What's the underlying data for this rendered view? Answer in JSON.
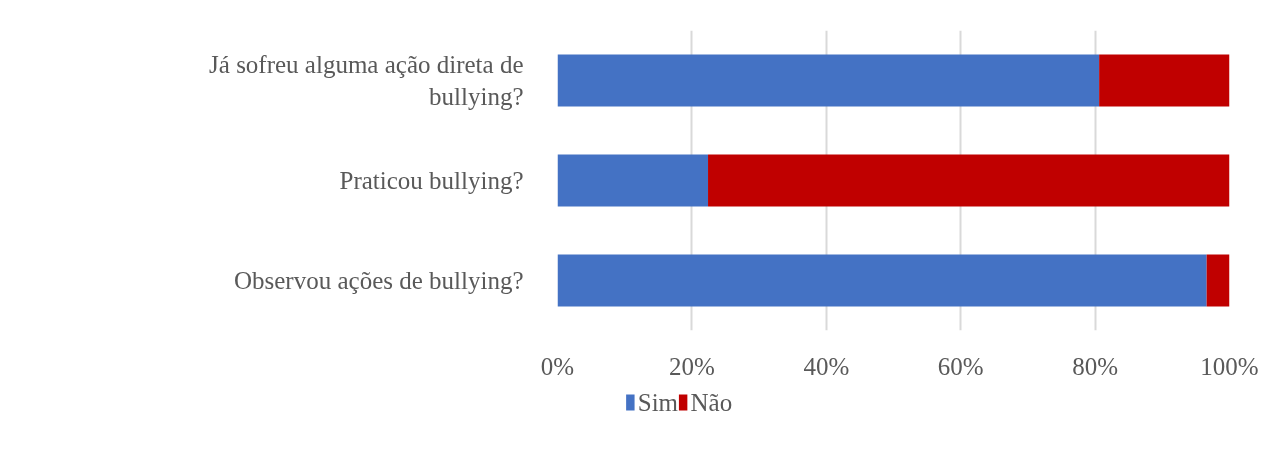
{
  "chart_data": {
    "type": "bar",
    "orientation": "horizontal",
    "stacked": true,
    "categories": [
      "Já sofreu alguma ação direta de bullying?",
      "Praticou bullying?",
      "Observou ações de bullying?"
    ],
    "series": [
      {
        "name": "Sim",
        "color": "#4472c4",
        "values": [
          80.6,
          22.4,
          96.6
        ]
      },
      {
        "name": "Não",
        "color": "#c00000",
        "values": [
          19.4,
          77.6,
          3.4
        ]
      }
    ],
    "xlim": [
      0,
      100
    ],
    "xticks": [
      {
        "value": 0,
        "label": "0%"
      },
      {
        "value": 20,
        "label": "20%"
      },
      {
        "value": 40,
        "label": "40%"
      },
      {
        "value": 60,
        "label": "60%"
      },
      {
        "value": 80,
        "label": "80%"
      },
      {
        "value": 100,
        "label": "100%"
      }
    ],
    "grid": "x",
    "legend": "bottom left"
  }
}
